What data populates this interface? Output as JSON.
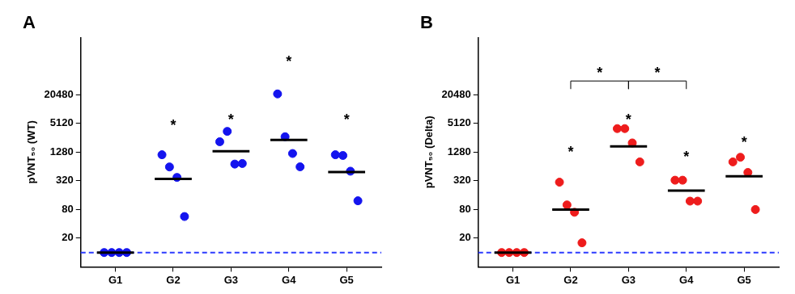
{
  "chart_data": [
    {
      "type": "scatter",
      "title": "A",
      "y_label": "pVNT₅₀ (WT)",
      "categories": [
        "G1",
        "G2",
        "G3",
        "G4",
        "G5"
      ],
      "values": [
        [
          10,
          10,
          10,
          10
        ],
        [
          1130,
          627,
          378,
          57
        ],
        [
          2118,
          3500,
          720,
          740
        ],
        [
          21400,
          2700,
          1200,
          630
        ],
        [
          1130,
          1090,
          510,
          122
        ]
      ],
      "means": [
        10,
        350,
        1340,
        2320,
        488
      ],
      "reference_line": 10,
      "annotations": [
        {
          "category": "G2",
          "text": "*",
          "value": 4500
        },
        {
          "category": "G3",
          "text": "*",
          "value": 6000
        },
        {
          "category": "G4",
          "text": "*",
          "value": 100000
        },
        {
          "category": "G5",
          "text": "*",
          "value": 6000
        }
      ],
      "comparisons": [],
      "color": "#1414ee",
      "marker": "circle",
      "log": "y",
      "grid": false,
      "ylim": [
        5,
        327680
      ],
      "yticks": [
        20,
        80,
        320,
        1280,
        5120,
        20480
      ]
    },
    {
      "type": "scatter",
      "title": "B",
      "y_label": "pVNT₅₀ (Delta)",
      "categories": [
        "G1",
        "G2",
        "G3",
        "G4",
        "G5"
      ],
      "values": [
        [
          10,
          10,
          10,
          10
        ],
        [
          300,
          100,
          70,
          16
        ],
        [
          4000,
          4000,
          2000,
          800
        ],
        [
          330,
          330,
          120,
          120
        ],
        [
          800,
          1000,
          480,
          80
        ]
      ],
      "means": [
        10,
        80,
        1700,
        200,
        400
      ],
      "reference_line": 10,
      "annotations": [
        {
          "category": "G2",
          "text": "*",
          "value": 1250
        },
        {
          "category": "G3",
          "text": "*",
          "value": 6000
        },
        {
          "category": "G4",
          "text": "*",
          "value": 1000
        },
        {
          "category": "G5",
          "text": "*",
          "value": 2000
        }
      ],
      "comparisons": [
        {
          "categories": [
            "G2",
            "G3"
          ],
          "text": "*",
          "value": 40000
        },
        {
          "categories": [
            "G3",
            "G4"
          ],
          "text": "*",
          "value": 40000
        }
      ],
      "color": "#ee1c1c",
      "marker": "circle",
      "log": "y",
      "grid": false,
      "ylim": [
        5,
        327680
      ],
      "yticks": [
        20,
        80,
        320,
        1280,
        5120,
        20480
      ]
    }
  ]
}
